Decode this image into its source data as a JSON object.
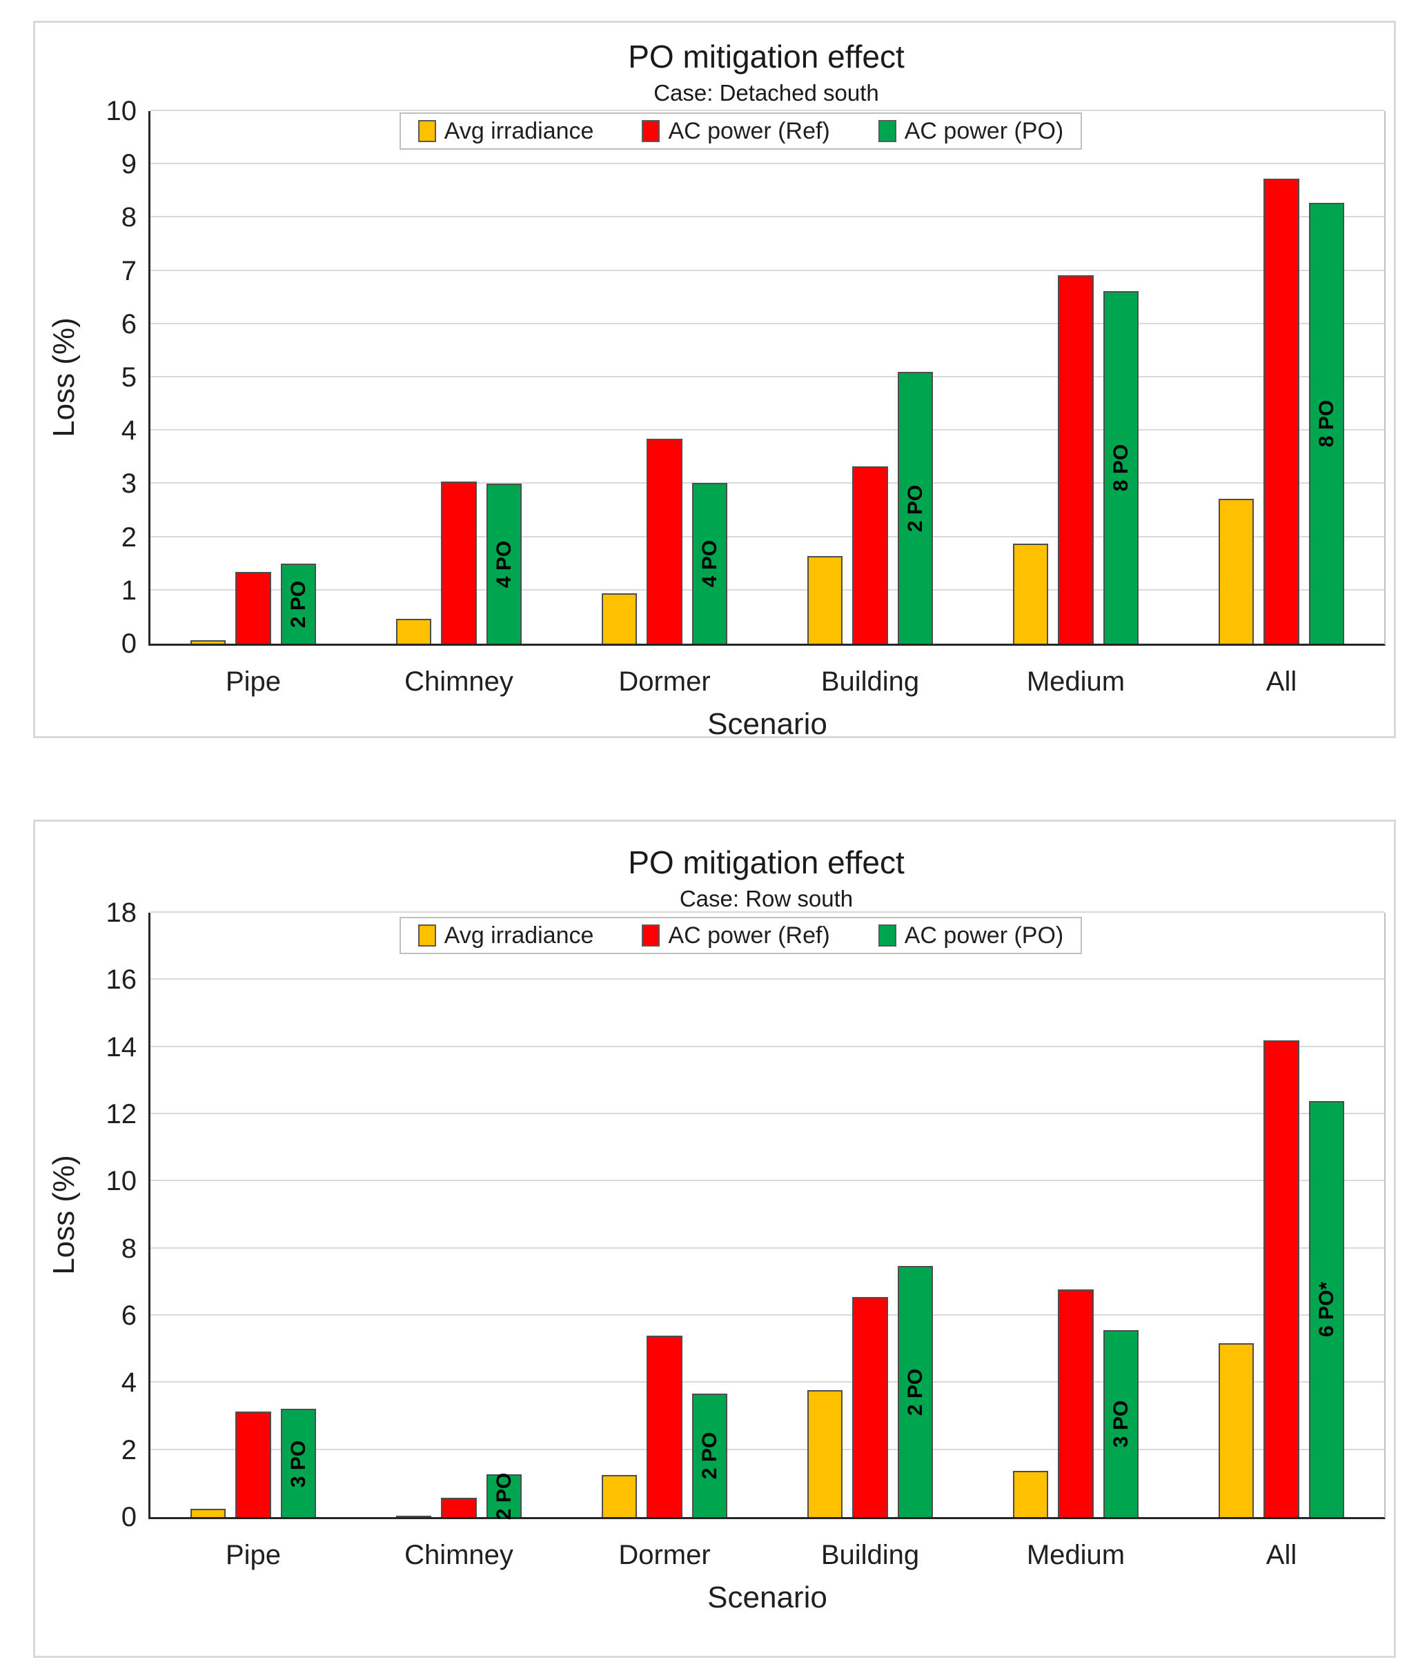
{
  "chart_data": [
    {
      "type": "bar",
      "title": "PO mitigation effect",
      "subtitle": "Case: Detached south",
      "xlabel": "Scenario",
      "ylabel": "Loss (%)",
      "ylim": [
        0,
        10
      ],
      "ytick_step": 1,
      "grid": true,
      "legend_position": "top-center-inside",
      "categories": [
        "Pipe",
        "Chimney",
        "Dormer",
        "Building",
        "Medium",
        "All"
      ],
      "series": [
        {
          "name": "Avg irradiance",
          "color": "#FFC000",
          "values": [
            0.07,
            0.47,
            0.95,
            1.65,
            1.88,
            2.72
          ]
        },
        {
          "name": "AC power (Ref)",
          "color": "#FF0000",
          "values": [
            1.35,
            3.05,
            3.85,
            3.33,
            6.92,
            8.73
          ]
        },
        {
          "name": "AC power (PO)",
          "color": "#00A550",
          "values": [
            1.5,
            3.0,
            3.02,
            5.1,
            6.62,
            8.28
          ],
          "bar_labels": [
            "2 PO",
            "4 PO",
            "4 PO",
            "2 PO",
            "8 PO",
            "8 PO"
          ]
        }
      ]
    },
    {
      "type": "bar",
      "title": "PO mitigation effect",
      "subtitle": "Case: Row south",
      "xlabel": "Scenario",
      "ylabel": "Loss (%)",
      "ylim": [
        0,
        18
      ],
      "ytick_step": 2,
      "grid": true,
      "legend_position": "top-center-inside",
      "categories": [
        "Pipe",
        "Chimney",
        "Dormer",
        "Building",
        "Medium",
        "All"
      ],
      "series": [
        {
          "name": "Avg irradiance",
          "color": "#FFC000",
          "values": [
            0.25,
            0.05,
            1.25,
            3.78,
            1.37,
            5.18
          ]
        },
        {
          "name": "AC power (Ref)",
          "color": "#FF0000",
          "values": [
            3.15,
            0.58,
            5.4,
            6.55,
            6.78,
            14.2
          ]
        },
        {
          "name": "AC power (PO)",
          "color": "#00A550",
          "values": [
            3.22,
            1.28,
            3.68,
            7.48,
            5.57,
            12.4
          ],
          "bar_labels": [
            "3 PO",
            "2 PO",
            "2 PO",
            "2 PO",
            "3 PO",
            "6 PO*"
          ]
        }
      ]
    }
  ],
  "style": {
    "bar_border_color": "#4d4d4d",
    "axis_color": "#262626",
    "gridline_color": "#d9d9d9",
    "panel_border_color": "#d9d9d9",
    "legend_border_color": "#bfbfbf",
    "text_color": "#1f1f1f",
    "background": "#ffffff"
  }
}
